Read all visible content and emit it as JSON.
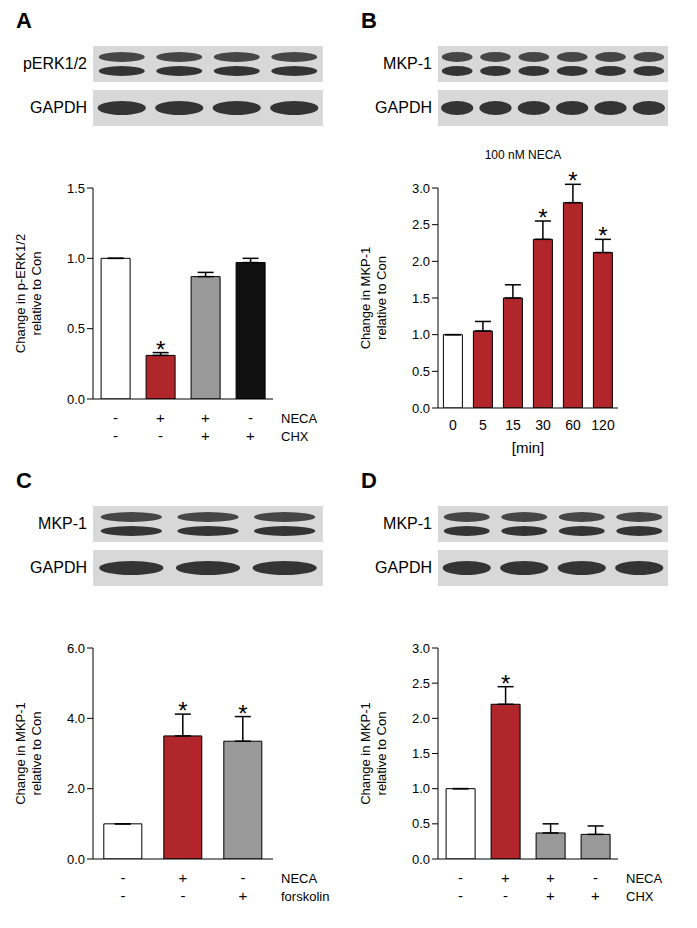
{
  "chart_data": [
    {
      "type": "bar",
      "panel": "A",
      "blot_labels": [
        "pERK1/2",
        "GAPDH"
      ],
      "ylabel": [
        "Change in p-ERK1/2",
        "relative to Con"
      ],
      "categories": [
        null,
        null,
        null,
        null
      ],
      "values": [
        1.0,
        0.31,
        0.87,
        0.97
      ],
      "errors": [
        0,
        0.02,
        0.03,
        0.03
      ],
      "colors": [
        "#ffffff",
        "#b0262b",
        "#999999",
        "#111111"
      ],
      "conditions": [
        {
          "name": "NECA",
          "values": [
            "-",
            "+",
            "+",
            "-"
          ]
        },
        {
          "name": "CHX",
          "values": [
            "-",
            "-",
            "+",
            "+"
          ]
        }
      ],
      "annotations": [
        {
          "index": 1,
          "text": "*"
        }
      ],
      "ylim": [
        0,
        1.5
      ],
      "yticks": [
        {
          "value": 0,
          "label": "0.0"
        },
        {
          "value": 0.5,
          "label": "0.5"
        },
        {
          "value": 1,
          "label": "1.0"
        },
        {
          "value": 1.5,
          "label": "1.5"
        }
      ]
    },
    {
      "type": "bar",
      "panel": "B",
      "blot_labels": [
        "MKP-1",
        "GAPDH"
      ],
      "title": "100 nM NECA",
      "ylabel": [
        "Change in MKP-1",
        "relative to Con"
      ],
      "xlabel": "[min]",
      "categories": [
        "0",
        "5",
        "15",
        "30",
        "60",
        "120"
      ],
      "values": [
        1.0,
        1.05,
        1.5,
        2.3,
        2.8,
        2.12
      ],
      "errors": [
        0,
        0.13,
        0.18,
        0.25,
        0.25,
        0.18
      ],
      "colors": [
        "#ffffff",
        "#b0262b",
        "#b0262b",
        "#b0262b",
        "#b0262b",
        "#b0262b"
      ],
      "annotations": [
        {
          "index": 3,
          "text": "*"
        },
        {
          "index": 4,
          "text": "*"
        },
        {
          "index": 5,
          "text": "*"
        }
      ],
      "ylim": [
        0,
        3
      ],
      "yticks": [
        {
          "value": 0,
          "label": "0.0"
        },
        {
          "value": 0.5,
          "label": "0.5"
        },
        {
          "value": 1,
          "label": "1.0"
        },
        {
          "value": 1.5,
          "label": "1.5"
        },
        {
          "value": 2,
          "label": "2.0"
        },
        {
          "value": 2.5,
          "label": "2.5"
        },
        {
          "value": 3,
          "label": "3.0"
        }
      ]
    },
    {
      "type": "bar",
      "panel": "C",
      "blot_labels": [
        "MKP-1",
        "GAPDH"
      ],
      "ylabel": [
        "Change in MKP-1",
        "relative to Con"
      ],
      "categories": [
        null,
        null,
        null
      ],
      "values": [
        1.0,
        3.5,
        3.35
      ],
      "errors": [
        0,
        0.62,
        0.7
      ],
      "colors": [
        "#ffffff",
        "#b0262b",
        "#999999"
      ],
      "conditions": [
        {
          "name": "NECA",
          "values": [
            "-",
            "+",
            "-"
          ]
        },
        {
          "name": "forskolin",
          "values": [
            "-",
            "-",
            "+"
          ]
        }
      ],
      "annotations": [
        {
          "index": 1,
          "text": "*"
        },
        {
          "index": 2,
          "text": "*"
        }
      ],
      "ylim": [
        0,
        6
      ],
      "yticks": [
        {
          "value": 0,
          "label": "0.0"
        },
        {
          "value": 2,
          "label": "2.0"
        },
        {
          "value": 4,
          "label": "4.0"
        },
        {
          "value": 6,
          "label": "6.0"
        }
      ]
    },
    {
      "type": "bar",
      "panel": "D",
      "blot_labels": [
        "MKP-1",
        "GAPDH"
      ],
      "ylabel": [
        "Change in MKP-1",
        "relative to Con"
      ],
      "categories": [
        null,
        null,
        null,
        null
      ],
      "values": [
        1.0,
        2.2,
        0.37,
        0.35
      ],
      "errors": [
        0,
        0.25,
        0.13,
        0.12
      ],
      "colors": [
        "#ffffff",
        "#b0262b",
        "#999999",
        "#999999"
      ],
      "conditions": [
        {
          "name": "NECA",
          "values": [
            "-",
            "+",
            "+",
            "-"
          ]
        },
        {
          "name": "CHX",
          "values": [
            "-",
            "-",
            "+",
            "+"
          ]
        }
      ],
      "annotations": [
        {
          "index": 1,
          "text": "*"
        }
      ],
      "ylim": [
        0,
        3
      ],
      "yticks": [
        {
          "value": 0,
          "label": "0.0"
        },
        {
          "value": 0.5,
          "label": "0.5"
        },
        {
          "value": 1,
          "label": "1.0"
        },
        {
          "value": 1.5,
          "label": "1.5"
        },
        {
          "value": 2,
          "label": "2.0"
        },
        {
          "value": 2.5,
          "label": "2.5"
        },
        {
          "value": 3,
          "label": "3.0"
        }
      ]
    }
  ]
}
